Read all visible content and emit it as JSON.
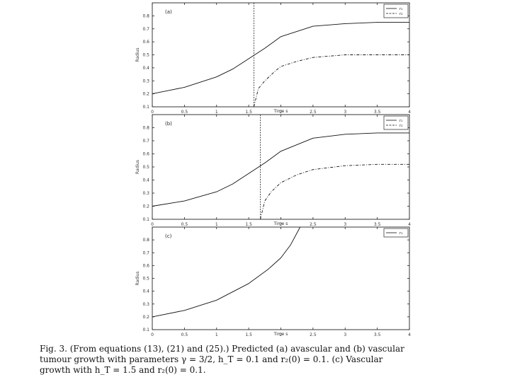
{
  "caption": {
    "line1": "Fig. 3. (From equations (13), (21) and (25).) Predicted (a) avascular and (b) vascular",
    "line2": "tumour growth with parameters γ = 3/2, h_T = 0.1 and r₂(0) = 0.1. (c) Vascular",
    "line3": "growth with h_T = 1.5 and r₂(0) = 0.1."
  },
  "chart_data": [
    {
      "type": "line",
      "panel_label": "(a)",
      "xlabel": "Time s",
      "ylabel": "Radius",
      "xlim": [
        0,
        4
      ],
      "ylim": [
        0.1,
        0.9
      ],
      "xticks": [
        "0",
        "0.5",
        "1",
        "1.5",
        "2",
        "2.5",
        "3",
        "3.5",
        "4"
      ],
      "yticks": [
        "0.1",
        "0.2",
        "0.3",
        "0.4",
        "0.5",
        "0.6",
        "0.7",
        "0.8"
      ],
      "vline": 1.58,
      "legend": [
        "r₁",
        "r₂"
      ],
      "series": [
        {
          "name": "r₁",
          "style": "solid",
          "x": [
            0,
            0.5,
            1,
            1.25,
            1.5,
            1.75,
            2,
            2.5,
            3,
            3.5,
            4
          ],
          "y": [
            0.2,
            0.25,
            0.33,
            0.39,
            0.47,
            0.55,
            0.64,
            0.72,
            0.74,
            0.75,
            0.75
          ]
        },
        {
          "name": "r₂",
          "style": "dashed",
          "x": [
            1.58,
            1.65,
            1.75,
            1.9,
            2.0,
            2.25,
            2.5,
            3.0,
            3.5,
            4.0
          ],
          "y": [
            0.1,
            0.24,
            0.3,
            0.37,
            0.41,
            0.45,
            0.48,
            0.5,
            0.5,
            0.5
          ]
        }
      ]
    },
    {
      "type": "line",
      "panel_label": "(b)",
      "xlabel": "Time s",
      "ylabel": "Radius",
      "xlim": [
        0,
        4
      ],
      "ylim": [
        0.1,
        0.9
      ],
      "xticks": [
        "0",
        "0.5",
        "1",
        "1.5",
        "2",
        "2.5",
        "3",
        "3.5",
        "4"
      ],
      "yticks": [
        "0.1",
        "0.2",
        "0.3",
        "0.4",
        "0.5",
        "0.6",
        "0.7",
        "0.8"
      ],
      "vline": 1.68,
      "legend": [
        "r₁",
        "r₂"
      ],
      "series": [
        {
          "name": "r₁",
          "style": "solid",
          "x": [
            0,
            0.5,
            1,
            1.25,
            1.5,
            1.75,
            2,
            2.5,
            3,
            3.5,
            4
          ],
          "y": [
            0.2,
            0.24,
            0.31,
            0.37,
            0.45,
            0.53,
            0.62,
            0.72,
            0.75,
            0.76,
            0.76
          ]
        },
        {
          "name": "r₂",
          "style": "dashed",
          "x": [
            1.68,
            1.75,
            1.85,
            2.0,
            2.25,
            2.5,
            3.0,
            3.5,
            4.0
          ],
          "y": [
            0.1,
            0.24,
            0.31,
            0.38,
            0.44,
            0.48,
            0.51,
            0.52,
            0.52
          ]
        }
      ]
    },
    {
      "type": "line",
      "panel_label": "(c)",
      "xlabel": "Time s",
      "ylabel": "Radius",
      "xlim": [
        0,
        4
      ],
      "ylim": [
        0.1,
        0.9
      ],
      "xticks": [
        "0",
        "0.5",
        "1",
        "1.5",
        "2",
        "2.5",
        "3",
        "3.5",
        "4"
      ],
      "yticks": [
        "0.1",
        "0.2",
        "0.3",
        "0.4",
        "0.5",
        "0.6",
        "0.7",
        "0.8"
      ],
      "vline": null,
      "legend": [
        "r₁"
      ],
      "series": [
        {
          "name": "r₁",
          "style": "solid",
          "x": [
            0,
            0.5,
            1.0,
            1.5,
            1.8,
            2.0,
            2.15,
            2.3
          ],
          "y": [
            0.2,
            0.25,
            0.33,
            0.46,
            0.57,
            0.66,
            0.76,
            0.9
          ]
        }
      ]
    }
  ]
}
